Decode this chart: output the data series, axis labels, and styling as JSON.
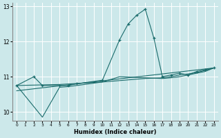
{
  "xlabel": "Humidex (Indice chaleur)",
  "bg_color": "#cce8ea",
  "grid_color": "#ffffff",
  "line_color": "#1a6b6b",
  "xlim": [
    -0.5,
    23.5
  ],
  "ylim": [
    9.75,
    13.1
  ],
  "yticks": [
    10,
    11,
    12,
    13
  ],
  "xtick_labels": [
    "0",
    "1",
    "2",
    "3",
    "4",
    "5",
    "6",
    "7",
    "8",
    "9",
    "10",
    "11",
    "12",
    "13",
    "14",
    "15",
    "16",
    "17",
    "18",
    "19",
    "20",
    "21",
    "22",
    "23"
  ],
  "series": [
    {
      "x": [
        0,
        2,
        3,
        5,
        6,
        7,
        10,
        12,
        13,
        14,
        15,
        16,
        17,
        18,
        19,
        20,
        21,
        22,
        23
      ],
      "y": [
        10.75,
        11.0,
        10.75,
        10.75,
        10.75,
        10.8,
        10.9,
        12.05,
        12.5,
        12.75,
        12.92,
        12.1,
        11.0,
        11.05,
        11.1,
        11.05,
        11.15,
        11.2,
        11.25
      ],
      "marker": "+"
    },
    {
      "x": [
        0,
        3,
        5,
        6,
        7,
        10,
        12,
        17,
        18,
        19,
        20,
        21,
        22,
        23
      ],
      "y": [
        10.75,
        9.85,
        10.7,
        10.72,
        10.75,
        10.85,
        11.0,
        10.95,
        10.97,
        11.0,
        11.05,
        11.1,
        11.15,
        11.25
      ],
      "marker": null
    },
    {
      "x": [
        0,
        5,
        10,
        15,
        17,
        18,
        19,
        20,
        21,
        22,
        23
      ],
      "y": [
        10.75,
        10.78,
        10.85,
        10.95,
        10.97,
        11.0,
        11.05,
        11.08,
        11.12,
        11.18,
        11.25
      ],
      "marker": null
    },
    {
      "x": [
        0,
        23
      ],
      "y": [
        10.6,
        11.25
      ],
      "marker": null
    }
  ]
}
